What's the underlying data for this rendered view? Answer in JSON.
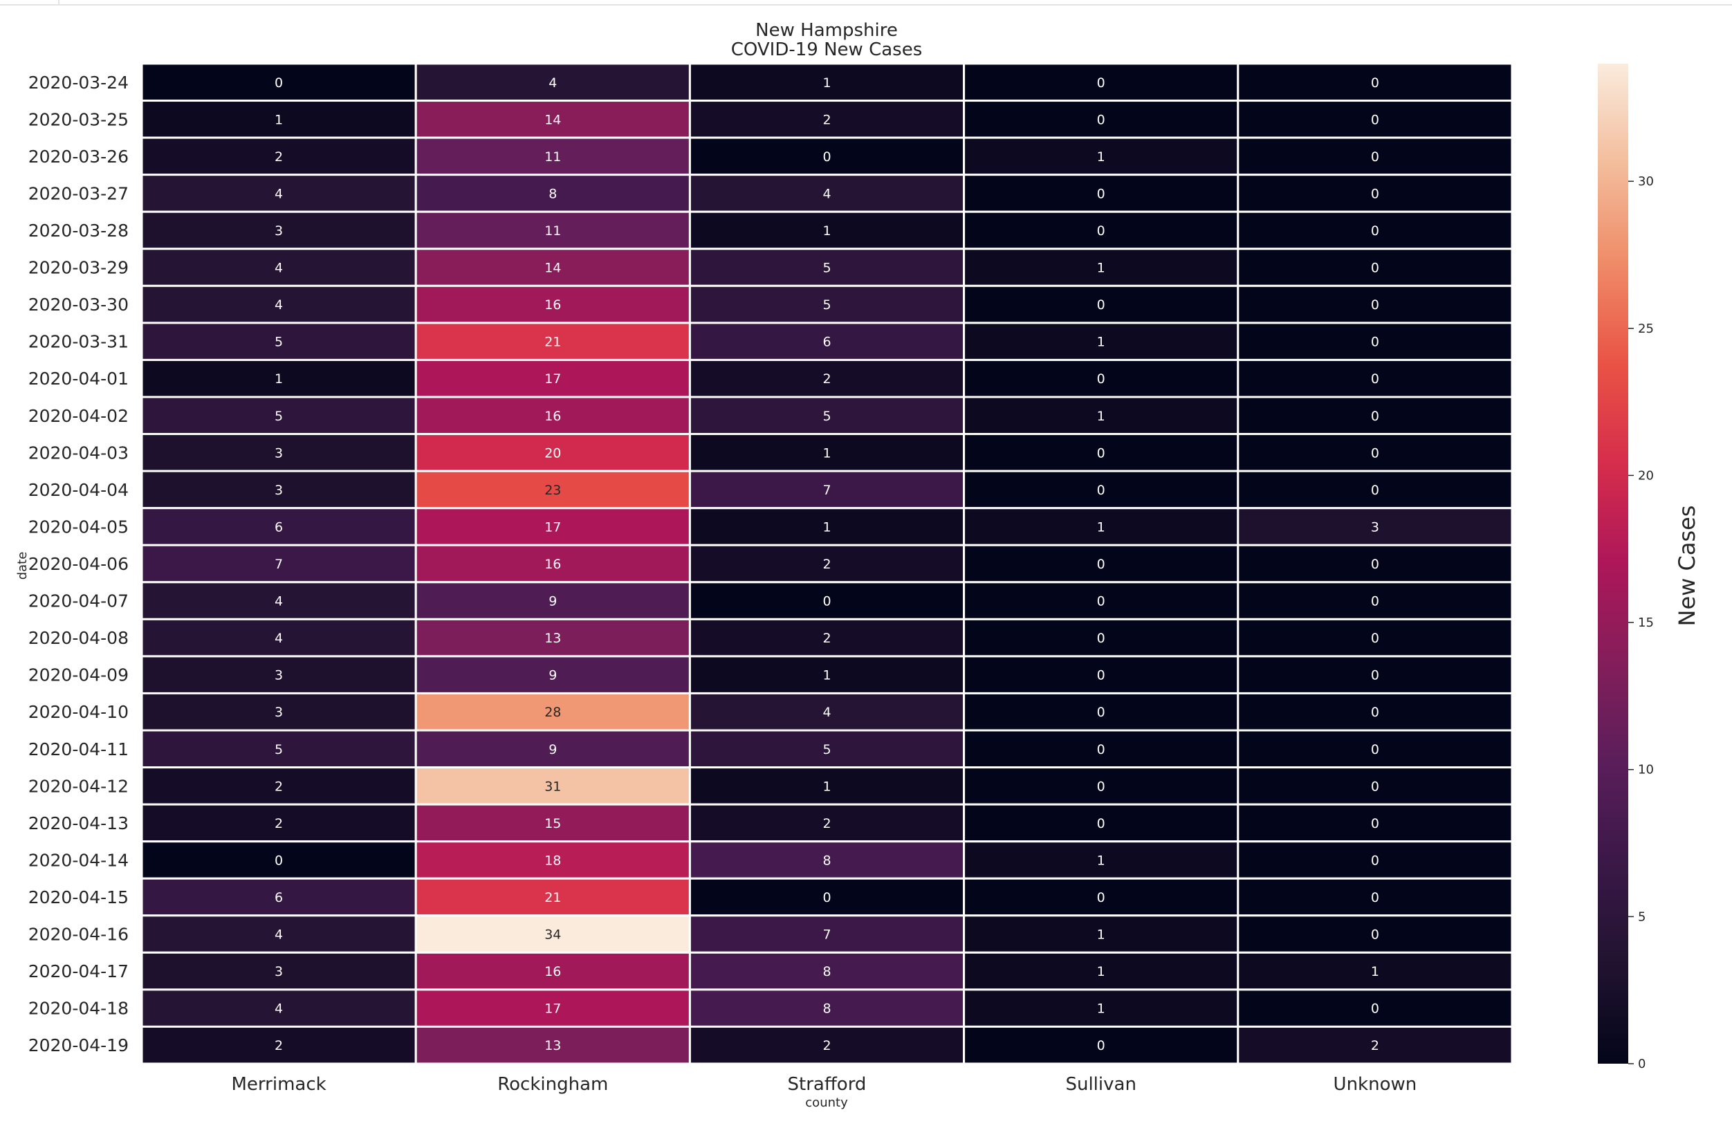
{
  "chart_data": {
    "type": "heatmap",
    "title": [
      "New Hampshire",
      "COVID-19 New Cases"
    ],
    "xlabel": "county",
    "ylabel": "date",
    "columns": [
      "Merrimack",
      "Rockingham",
      "Strafford",
      "Sullivan",
      "Unknown"
    ],
    "rows": [
      "2020-03-24",
      "2020-03-25",
      "2020-03-26",
      "2020-03-27",
      "2020-03-28",
      "2020-03-29",
      "2020-03-30",
      "2020-03-31",
      "2020-04-01",
      "2020-04-02",
      "2020-04-03",
      "2020-04-04",
      "2020-04-05",
      "2020-04-06",
      "2020-04-07",
      "2020-04-08",
      "2020-04-09",
      "2020-04-10",
      "2020-04-11",
      "2020-04-12",
      "2020-04-13",
      "2020-04-14",
      "2020-04-15",
      "2020-04-16",
      "2020-04-17",
      "2020-04-18",
      "2020-04-19"
    ],
    "values": [
      [
        0,
        4,
        1,
        0,
        0
      ],
      [
        1,
        14,
        2,
        0,
        0
      ],
      [
        2,
        11,
        0,
        1,
        0
      ],
      [
        4,
        8,
        4,
        0,
        0
      ],
      [
        3,
        11,
        1,
        0,
        0
      ],
      [
        4,
        14,
        5,
        1,
        0
      ],
      [
        4,
        16,
        5,
        0,
        0
      ],
      [
        5,
        21,
        6,
        1,
        0
      ],
      [
        1,
        17,
        2,
        0,
        0
      ],
      [
        5,
        16,
        5,
        1,
        0
      ],
      [
        3,
        20,
        1,
        0,
        0
      ],
      [
        3,
        23,
        7,
        0,
        0
      ],
      [
        6,
        17,
        1,
        1,
        3
      ],
      [
        7,
        16,
        2,
        0,
        0
      ],
      [
        4,
        9,
        0,
        0,
        0
      ],
      [
        4,
        13,
        2,
        0,
        0
      ],
      [
        3,
        9,
        1,
        0,
        0
      ],
      [
        3,
        28,
        4,
        0,
        0
      ],
      [
        5,
        9,
        5,
        0,
        0
      ],
      [
        2,
        31,
        1,
        0,
        0
      ],
      [
        2,
        15,
        2,
        0,
        0
      ],
      [
        0,
        18,
        8,
        1,
        0
      ],
      [
        6,
        21,
        0,
        0,
        0
      ],
      [
        4,
        34,
        7,
        1,
        0
      ],
      [
        3,
        16,
        8,
        1,
        1
      ],
      [
        4,
        17,
        8,
        1,
        0
      ],
      [
        2,
        13,
        2,
        0,
        2
      ]
    ],
    "colorbar": {
      "label": "New Cases",
      "range": [
        0,
        34
      ],
      "ticks": [
        0,
        5,
        10,
        15,
        20,
        25,
        30
      ],
      "colormap": "rocket"
    }
  }
}
